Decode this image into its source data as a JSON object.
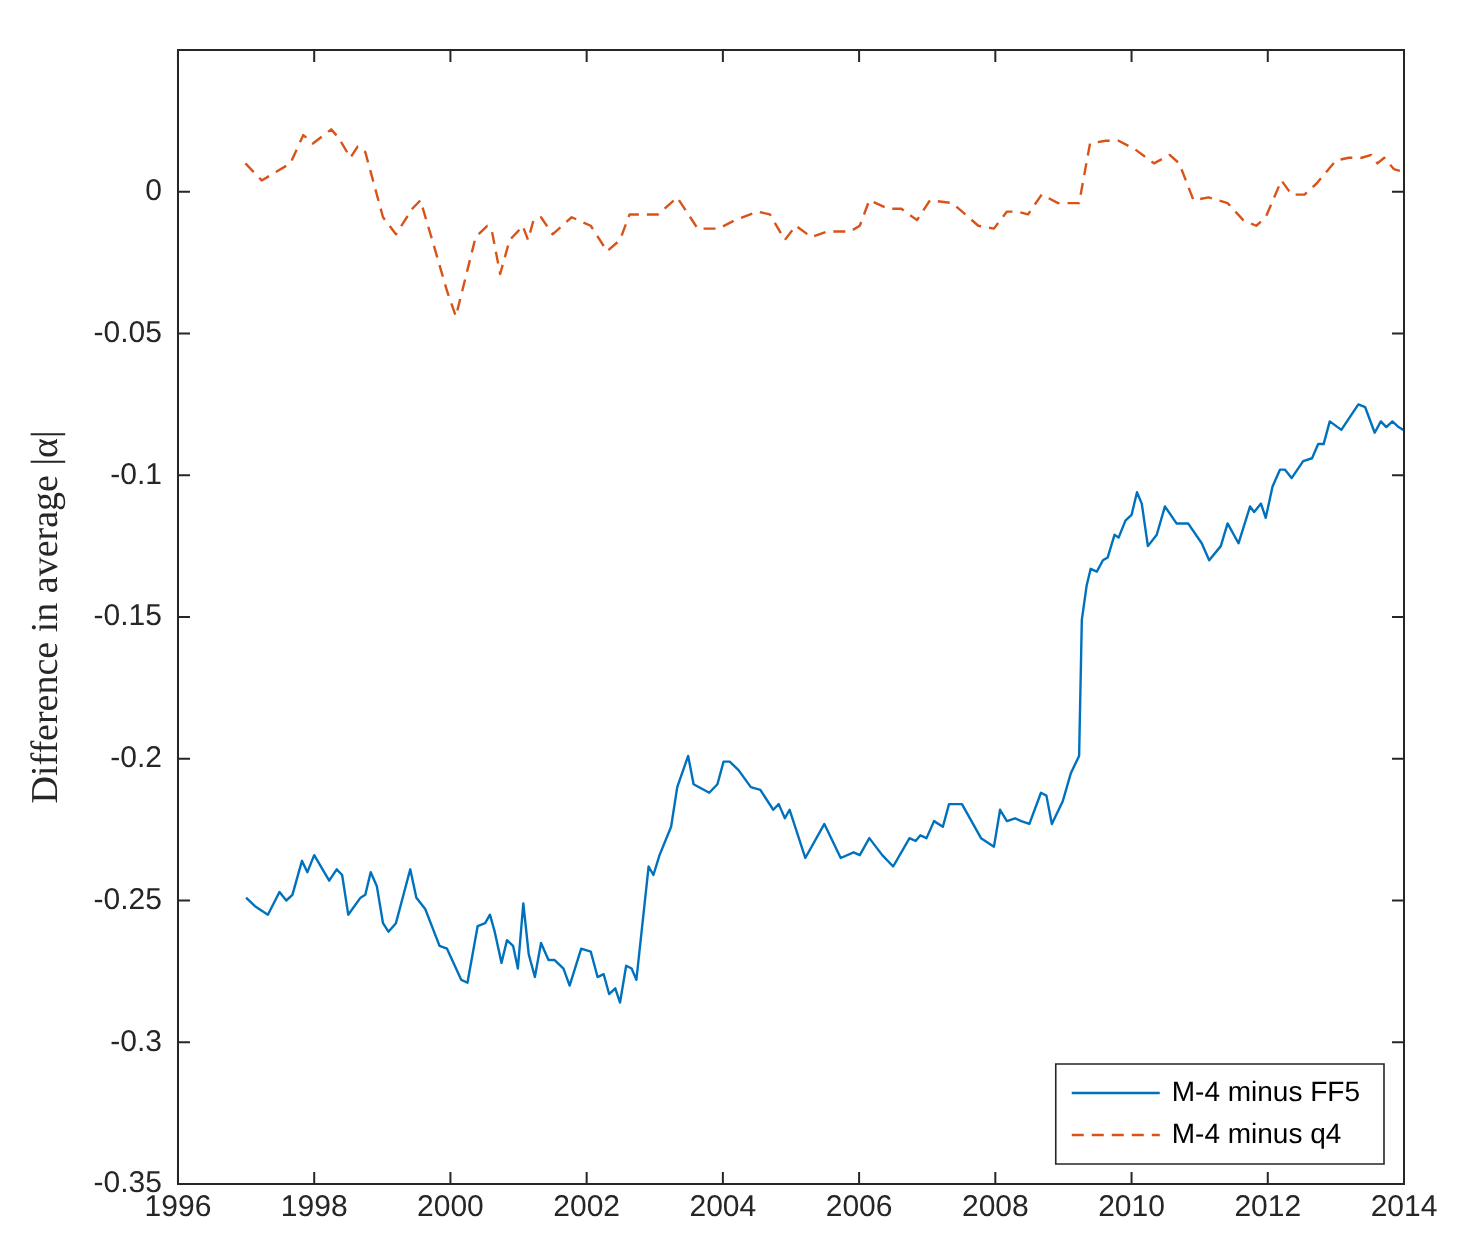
{
  "chart_data": {
    "type": "line",
    "ylabel": "Difference in average |α|",
    "xlim": [
      1996,
      2014
    ],
    "xticks": [
      1996,
      1998,
      2000,
      2002,
      2004,
      2006,
      2008,
      2010,
      2012,
      2014
    ],
    "ylim": [
      -0.35,
      0.05
    ],
    "yticks": [
      -0.35,
      -0.3,
      -0.25,
      -0.2,
      -0.15,
      -0.1,
      -0.05,
      0
    ],
    "grid": false,
    "legend": "bottom right",
    "marker": "none",
    "series": [
      {
        "name": "M-4 minus FF5",
        "color": "#0072bd",
        "line_style": "solid",
        "x": [
          1997.0,
          1997.13,
          1997.32,
          1997.49,
          1997.59,
          1997.68,
          1997.82,
          1997.9,
          1998.0,
          1998.22,
          1998.33,
          1998.41,
          1998.5,
          1998.68,
          1998.75,
          1998.83,
          1998.92,
          1999.01,
          1999.09,
          1999.2,
          1999.41,
          1999.5,
          1999.63,
          1999.84,
          1999.95,
          2000.16,
          2000.25,
          2000.4,
          2000.51,
          2000.58,
          2000.65,
          2000.75,
          2000.83,
          2000.92,
          2000.99,
          2001.07,
          2001.15,
          2001.24,
          2001.33,
          2001.44,
          2001.53,
          2001.66,
          2001.75,
          2001.92,
          2002.06,
          2002.16,
          2002.25,
          2002.33,
          2002.42,
          2002.49,
          2002.58,
          2002.66,
          2002.73,
          2002.91,
          2002.98,
          2003.07,
          2003.24,
          2003.33,
          2003.49,
          2003.57,
          2003.8,
          2003.92,
          2004.01,
          2004.1,
          2004.23,
          2004.41,
          2004.55,
          2004.74,
          2004.82,
          2004.91,
          2004.98,
          2005.21,
          2005.49,
          2005.73,
          2005.92,
          2006.01,
          2006.15,
          2006.34,
          2006.5,
          2006.74,
          2006.83,
          2006.9,
          2006.99,
          2007.1,
          2007.23,
          2007.32,
          2007.51,
          2007.65,
          2007.79,
          2007.98,
          2008.07,
          2008.17,
          2008.29,
          2008.38,
          2008.5,
          2008.67,
          2008.75,
          2008.83,
          2008.99,
          2009.11,
          2009.23,
          2009.27,
          2009.34,
          2009.4,
          2009.49,
          2009.58,
          2009.65,
          2009.75,
          2009.81,
          2009.91,
          2010.0,
          2010.08,
          2010.15,
          2010.24,
          2010.37,
          2010.49,
          2010.66,
          2010.83,
          2011.03,
          2011.14,
          2011.31,
          2011.41,
          2011.57,
          2011.74,
          2011.8,
          2011.9,
          2011.97,
          2012.07,
          2012.18,
          2012.25,
          2012.35,
          2012.52,
          2012.65,
          2012.74,
          2012.82,
          2012.91,
          2013.08,
          2013.19,
          2013.33,
          2013.43,
          2013.57,
          2013.66,
          2013.74,
          2013.83,
          2013.92,
          2013.99
        ],
        "values": [
          -0.249,
          -0.252,
          -0.255,
          -0.247,
          -0.25,
          -0.248,
          -0.236,
          -0.24,
          -0.234,
          -0.243,
          -0.239,
          -0.241,
          -0.255,
          -0.249,
          -0.248,
          -0.24,
          -0.245,
          -0.258,
          -0.261,
          -0.258,
          -0.239,
          -0.249,
          -0.253,
          -0.266,
          -0.267,
          -0.278,
          -0.279,
          -0.259,
          -0.258,
          -0.255,
          -0.261,
          -0.272,
          -0.264,
          -0.266,
          -0.274,
          -0.251,
          -0.269,
          -0.277,
          -0.265,
          -0.271,
          -0.271,
          -0.274,
          -0.28,
          -0.267,
          -0.268,
          -0.277,
          -0.276,
          -0.283,
          -0.281,
          -0.286,
          -0.273,
          -0.274,
          -0.278,
          -0.238,
          -0.241,
          -0.234,
          -0.224,
          -0.21,
          -0.199,
          -0.209,
          -0.212,
          -0.209,
          -0.201,
          -0.201,
          -0.204,
          -0.21,
          -0.211,
          -0.218,
          -0.216,
          -0.221,
          -0.218,
          -0.235,
          -0.223,
          -0.235,
          -0.233,
          -0.234,
          -0.228,
          -0.234,
          -0.238,
          -0.228,
          -0.229,
          -0.227,
          -0.228,
          -0.222,
          -0.224,
          -0.216,
          -0.216,
          -0.222,
          -0.228,
          -0.231,
          -0.218,
          -0.222,
          -0.221,
          -0.222,
          -0.223,
          -0.212,
          -0.213,
          -0.223,
          -0.215,
          -0.205,
          -0.199,
          -0.151,
          -0.139,
          -0.133,
          -0.134,
          -0.13,
          -0.129,
          -0.121,
          -0.122,
          -0.116,
          -0.114,
          -0.106,
          -0.11,
          -0.125,
          -0.121,
          -0.111,
          -0.117,
          -0.117,
          -0.124,
          -0.13,
          -0.125,
          -0.117,
          -0.124,
          -0.111,
          -0.113,
          -0.11,
          -0.115,
          -0.104,
          -0.098,
          -0.098,
          -0.101,
          -0.095,
          -0.094,
          -0.089,
          -0.089,
          -0.081,
          -0.084,
          -0.08,
          -0.075,
          -0.076,
          -0.085,
          -0.081,
          -0.083,
          -0.081,
          -0.083,
          -0.084
        ]
      },
      {
        "name": "M-4 minus q4",
        "color": "#d95319",
        "line_style": "dashed",
        "x": [
          1996.99,
          1997.23,
          1997.65,
          1997.84,
          1997.98,
          1998.25,
          1998.36,
          1998.53,
          1998.64,
          1998.75,
          1999.01,
          1999.2,
          1999.44,
          1999.56,
          1999.72,
          1999.95,
          2000.08,
          2000.37,
          2000.54,
          2000.61,
          2000.73,
          2000.87,
          2000.99,
          2001.06,
          2001.14,
          2001.22,
          2001.33,
          2001.5,
          2001.78,
          2002.06,
          2002.3,
          2002.49,
          2002.63,
          2003.05,
          2003.33,
          2003.63,
          2003.94,
          2004.18,
          2004.51,
          2004.69,
          2004.91,
          2005.07,
          2005.3,
          2005.54,
          2005.87,
          2006.01,
          2006.15,
          2006.43,
          2006.62,
          2006.85,
          2007.04,
          2007.37,
          2007.75,
          2007.98,
          2008.17,
          2008.33,
          2008.48,
          2008.68,
          2008.92,
          2009.23,
          2009.39,
          2009.62,
          2009.81,
          2010.05,
          2010.33,
          2010.56,
          2010.7,
          2010.91,
          2011.13,
          2011.41,
          2011.64,
          2011.83,
          2011.97,
          2012.2,
          2012.35,
          2012.54,
          2012.72,
          2013.0,
          2013.19,
          2013.38,
          2013.52,
          2013.61,
          2013.71,
          2013.85,
          2013.99
        ],
        "values": [
          0.01,
          0.004,
          0.01,
          0.02,
          0.017,
          0.022,
          0.019,
          0.012,
          0.016,
          0.014,
          -0.009,
          -0.015,
          -0.006,
          -0.003,
          -0.016,
          -0.035,
          -0.044,
          -0.016,
          -0.012,
          -0.014,
          -0.029,
          -0.017,
          -0.014,
          -0.012,
          -0.017,
          -0.01,
          -0.009,
          -0.015,
          -0.009,
          -0.012,
          -0.021,
          -0.017,
          -0.008,
          -0.008,
          -0.002,
          -0.013,
          -0.013,
          -0.01,
          -0.007,
          -0.008,
          -0.017,
          -0.012,
          -0.016,
          -0.014,
          -0.014,
          -0.012,
          -0.003,
          -0.006,
          -0.006,
          -0.01,
          -0.003,
          -0.004,
          -0.012,
          -0.013,
          -0.007,
          -0.007,
          -0.008,
          -0.001,
          -0.004,
          -0.004,
          0.017,
          0.018,
          0.018,
          0.015,
          0.01,
          0.013,
          0.01,
          -0.003,
          -0.002,
          -0.004,
          -0.01,
          -0.012,
          -0.009,
          0.004,
          -0.001,
          -0.001,
          0.003,
          0.011,
          0.012,
          0.012,
          0.013,
          0.01,
          0.012,
          0.008,
          0.007
        ]
      }
    ]
  }
}
